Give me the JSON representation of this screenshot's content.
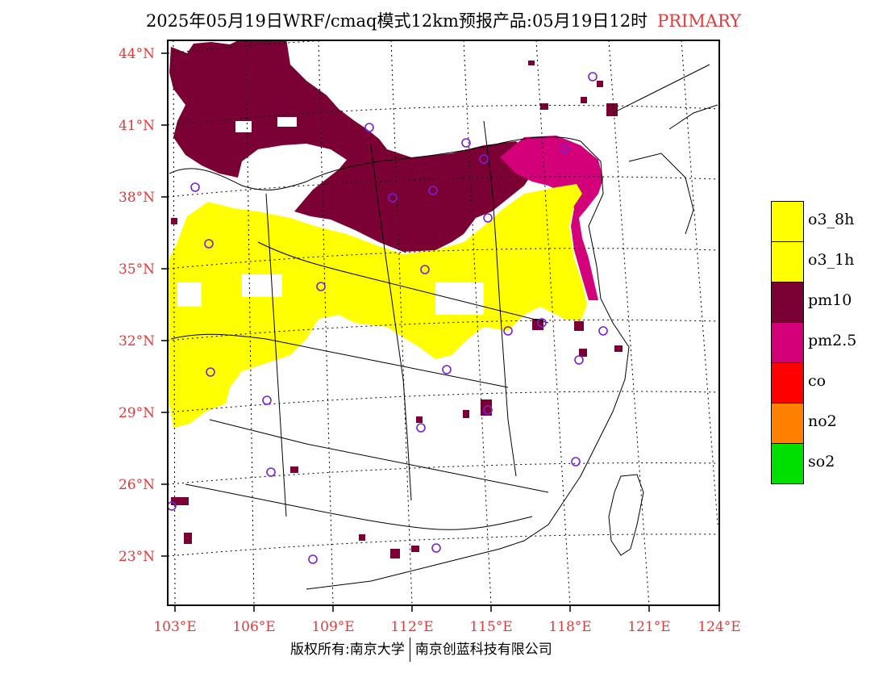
{
  "title": {
    "main": "2025年05月19日WRF/cmaq模式12km预报产品:05月19日12时",
    "tag": "PRIMARY"
  },
  "latitude_labels": [
    "44°N",
    "41°N",
    "38°N",
    "35°N",
    "32°N",
    "29°N",
    "26°N",
    "23°N"
  ],
  "longitude_labels": [
    "103°E",
    "106°E",
    "109°E",
    "112°E",
    "115°E",
    "118°E",
    "121°E",
    "124°E"
  ],
  "legend": [
    {
      "label": "o3_8h",
      "color": "#ffff00"
    },
    {
      "label": "o3_1h",
      "color": "#ffff00"
    },
    {
      "label": "pm10",
      "color": "#7b0033"
    },
    {
      "label": "pm2.5",
      "color": "#d4007a"
    },
    {
      "label": "co",
      "color": "#ff0000"
    },
    {
      "label": "no2",
      "color": "#ff7f00"
    },
    {
      "label": "so2",
      "color": "#00e000"
    }
  ],
  "copyright": {
    "left": "版权所有:南京大学",
    "right": "南京创蓝科技有限公司"
  },
  "colors": {
    "o3": "#ffff00",
    "pm10": "#7b0033",
    "pm25": "#d4007a",
    "station": "#7a1fd6",
    "label": "#e23a3a"
  }
}
